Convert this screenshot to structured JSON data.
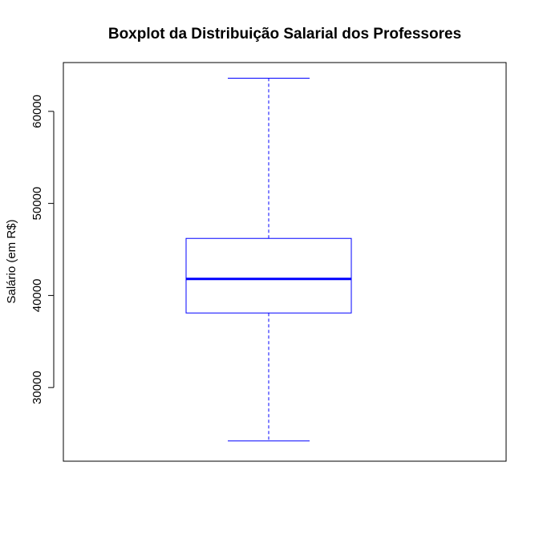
{
  "chart_data": {
    "type": "box",
    "title": "Boxplot da Distribuição Salarial dos Professores",
    "xlabel": "",
    "ylabel": "Salário (em R$)",
    "ylim": [
      22000,
      65300
    ],
    "yticks": [
      30000,
      40000,
      50000,
      60000
    ],
    "ytick_labels": [
      "30000",
      "40000",
      "50000",
      "60000"
    ],
    "grid": false,
    "series": [
      {
        "min": 24200,
        "q1": 38100,
        "median": 41800,
        "q3": 46200,
        "max": 63600
      }
    ],
    "colors": {
      "box": "#0000ff",
      "frame": "#000000",
      "background": "#ffffff"
    }
  }
}
